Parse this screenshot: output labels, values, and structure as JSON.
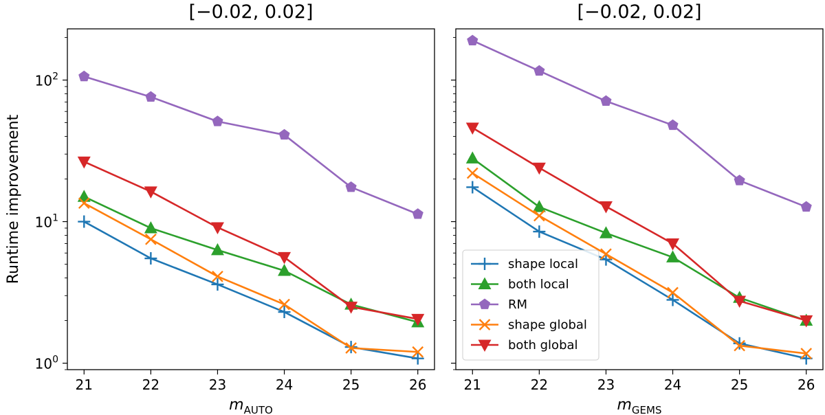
{
  "chart_data": [
    {
      "type": "line",
      "title": "[−0.02, 0.02]",
      "xlabel_main": "m",
      "xlabel_sub": "AUTO",
      "ylabel": "Runtime improvement",
      "yscale": "log",
      "xlim": [
        20.75,
        26.25
      ],
      "ylim": [
        0.9,
        230
      ],
      "x": [
        21,
        22,
        23,
        24,
        25,
        26
      ],
      "x_tick_labels": [
        "21",
        "22",
        "23",
        "24",
        "25",
        "26"
      ],
      "y_tick_labels": {
        "base": "10",
        "exps": [
          "0",
          "1",
          "2"
        ]
      },
      "series": [
        {
          "name": "shape local",
          "color": "#1f77b4",
          "marker": "plus",
          "values": [
            10.0,
            5.5,
            3.6,
            2.3,
            1.3,
            1.08
          ]
        },
        {
          "name": "both local",
          "color": "#2ca02c",
          "marker": "triangle-up",
          "values": [
            15.0,
            9.0,
            6.3,
            4.5,
            2.6,
            1.95
          ]
        },
        {
          "name": "RM",
          "color": "#9467bd",
          "marker": "pentagon",
          "values": [
            106,
            76,
            51,
            41,
            17.5,
            11.3
          ]
        },
        {
          "name": "shape global",
          "color": "#ff7f0e",
          "marker": "x",
          "values": [
            13.5,
            7.5,
            4.1,
            2.6,
            1.28,
            1.2
          ]
        },
        {
          "name": "both global",
          "color": "#d62728",
          "marker": "triangle-down",
          "values": [
            26.5,
            16.3,
            9.1,
            5.6,
            2.5,
            2.05
          ]
        }
      ]
    },
    {
      "type": "line",
      "title": "[−0.02, 0.02]",
      "xlabel_main": "m",
      "xlabel_sub": "GEMS",
      "ylabel": "",
      "yscale": "log",
      "xlim": [
        20.75,
        26.25
      ],
      "ylim": [
        0.9,
        230
      ],
      "x": [
        21,
        22,
        23,
        24,
        25,
        26
      ],
      "x_tick_labels": [
        "21",
        "22",
        "23",
        "24",
        "25",
        "26"
      ],
      "legend_position": "lower-left",
      "series": [
        {
          "name": "shape local",
          "color": "#1f77b4",
          "marker": "plus",
          "values": [
            17.5,
            8.5,
            5.4,
            2.8,
            1.38,
            1.08
          ]
        },
        {
          "name": "both local",
          "color": "#2ca02c",
          "marker": "triangle-up",
          "values": [
            28,
            12.7,
            8.3,
            5.6,
            2.9,
            2.0
          ]
        },
        {
          "name": "RM",
          "color": "#9467bd",
          "marker": "pentagon",
          "values": [
            190,
            116,
            71,
            48,
            19.5,
            12.7
          ]
        },
        {
          "name": "shape global",
          "color": "#ff7f0e",
          "marker": "x",
          "values": [
            22,
            11,
            5.9,
            3.15,
            1.33,
            1.17
          ]
        },
        {
          "name": "both global",
          "color": "#d62728",
          "marker": "triangle-down",
          "values": [
            46,
            24,
            12.8,
            7.0,
            2.75,
            2.0
          ]
        }
      ]
    }
  ]
}
